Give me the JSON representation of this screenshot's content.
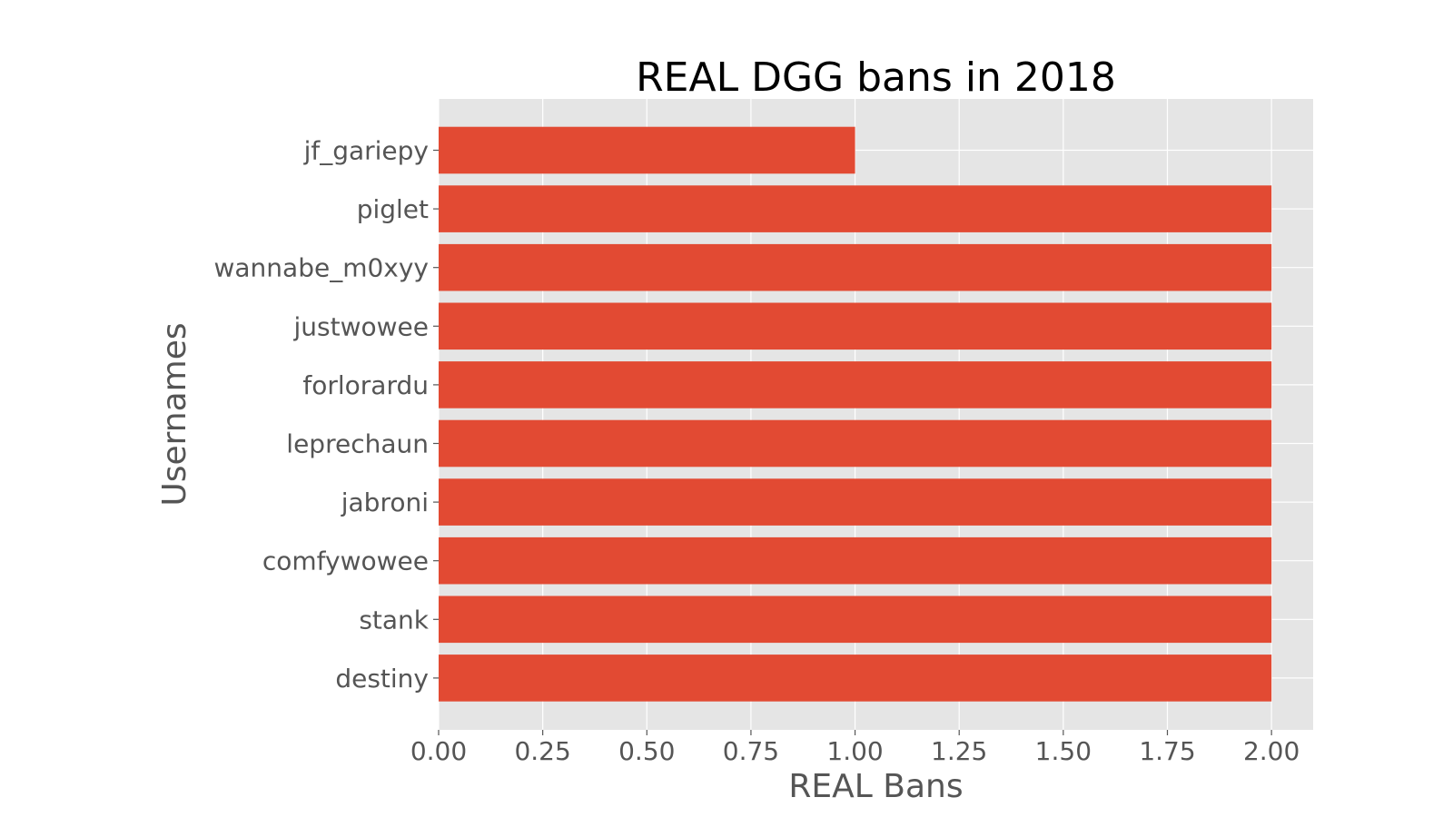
{
  "chart_data": {
    "type": "bar",
    "orientation": "horizontal",
    "title": "REAL DGG bans in 2018",
    "xlabel": "REAL Bans",
    "ylabel": "Usernames",
    "categories": [
      "jf_gariepy",
      "piglet",
      "wannabe_m0xyy",
      "justwowee",
      "forlorardu",
      "leprechaun",
      "jabroni",
      "comfywowee",
      "stank",
      "destiny"
    ],
    "values": [
      1,
      2,
      2,
      2,
      2,
      2,
      2,
      2,
      2,
      2
    ],
    "xlim": [
      0,
      2.1
    ],
    "xticks": [
      "0.00",
      "0.25",
      "0.50",
      "0.75",
      "1.00",
      "1.25",
      "1.50",
      "1.75",
      "2.00"
    ],
    "grid": true,
    "colors": {
      "bar": "#E24A33",
      "plot_background": "#E5E5E5",
      "grid": "#FFFFFF"
    }
  }
}
